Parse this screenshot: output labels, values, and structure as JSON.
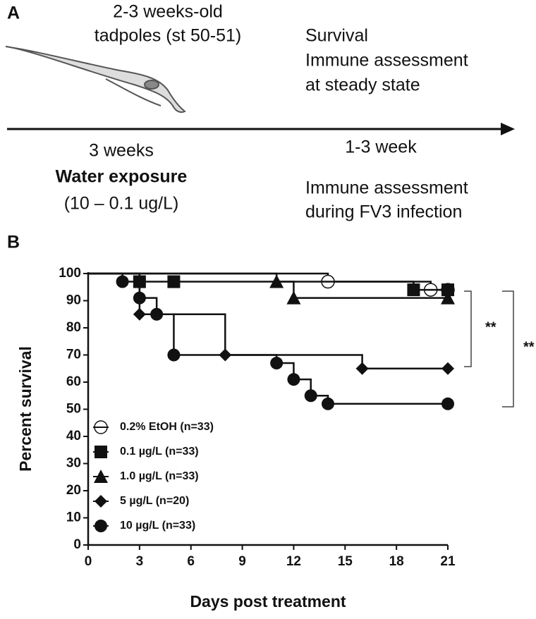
{
  "panel_a": {
    "label": "A",
    "tadpole_age": "2-3 weeks-old",
    "tadpole_stage": "tadpoles (st 50-51)",
    "steady_lines": [
      "Survival",
      "Immune assessment",
      "at steady state"
    ],
    "exposure_duration": "3 weeks",
    "exposure_title": "Water exposure",
    "exposure_range": "(10 – 0.1 ug/L)",
    "followup_duration": "1-3 week",
    "infection_lines": [
      "Immune assessment",
      "during FV3 infection"
    ]
  },
  "chart_data": {
    "type": "survival",
    "panel_label": "B",
    "xlabel": "Days post treatment",
    "ylabel": "Percent survival",
    "xlim": [
      0,
      21
    ],
    "xticks": [
      0,
      3,
      6,
      9,
      12,
      15,
      18,
      21
    ],
    "ylim": [
      0,
      100
    ],
    "yticks": [
      0,
      10,
      20,
      30,
      40,
      50,
      60,
      70,
      80,
      90,
      100
    ],
    "legend": "lower-left",
    "series": [
      {
        "name": "0.2% EtOH (n=33)",
        "color": "#111111",
        "marker": "open-circle",
        "x": [
          0,
          14,
          20,
          21
        ],
        "values": [
          100,
          97,
          94,
          94
        ]
      },
      {
        "name": "0.1 µg/L (n=33)",
        "color": "#111111",
        "marker": "square",
        "x": [
          0,
          3,
          5,
          19,
          21
        ],
        "values": [
          100,
          97,
          97,
          94,
          94
        ]
      },
      {
        "name": "1.0 µg/L (n=33)",
        "color": "#111111",
        "marker": "triangle",
        "x": [
          0,
          11,
          12,
          21
        ],
        "values": [
          100,
          97,
          91,
          91
        ]
      },
      {
        "name": "5 µg/L  (n=20)",
        "color": "#111111",
        "marker": "diamond",
        "x": [
          0,
          3,
          8,
          16,
          21
        ],
        "values": [
          100,
          85,
          70,
          65,
          65
        ]
      },
      {
        "name": "10 µg/L (n=33)",
        "color": "#111111",
        "marker": "circle",
        "x": [
          0,
          2,
          3,
          4,
          5,
          11,
          12,
          13,
          14,
          21
        ],
        "values": [
          100,
          97,
          91,
          85,
          70,
          67,
          61,
          55,
          52,
          52
        ]
      }
    ],
    "annotations": [
      "**",
      "**"
    ]
  }
}
